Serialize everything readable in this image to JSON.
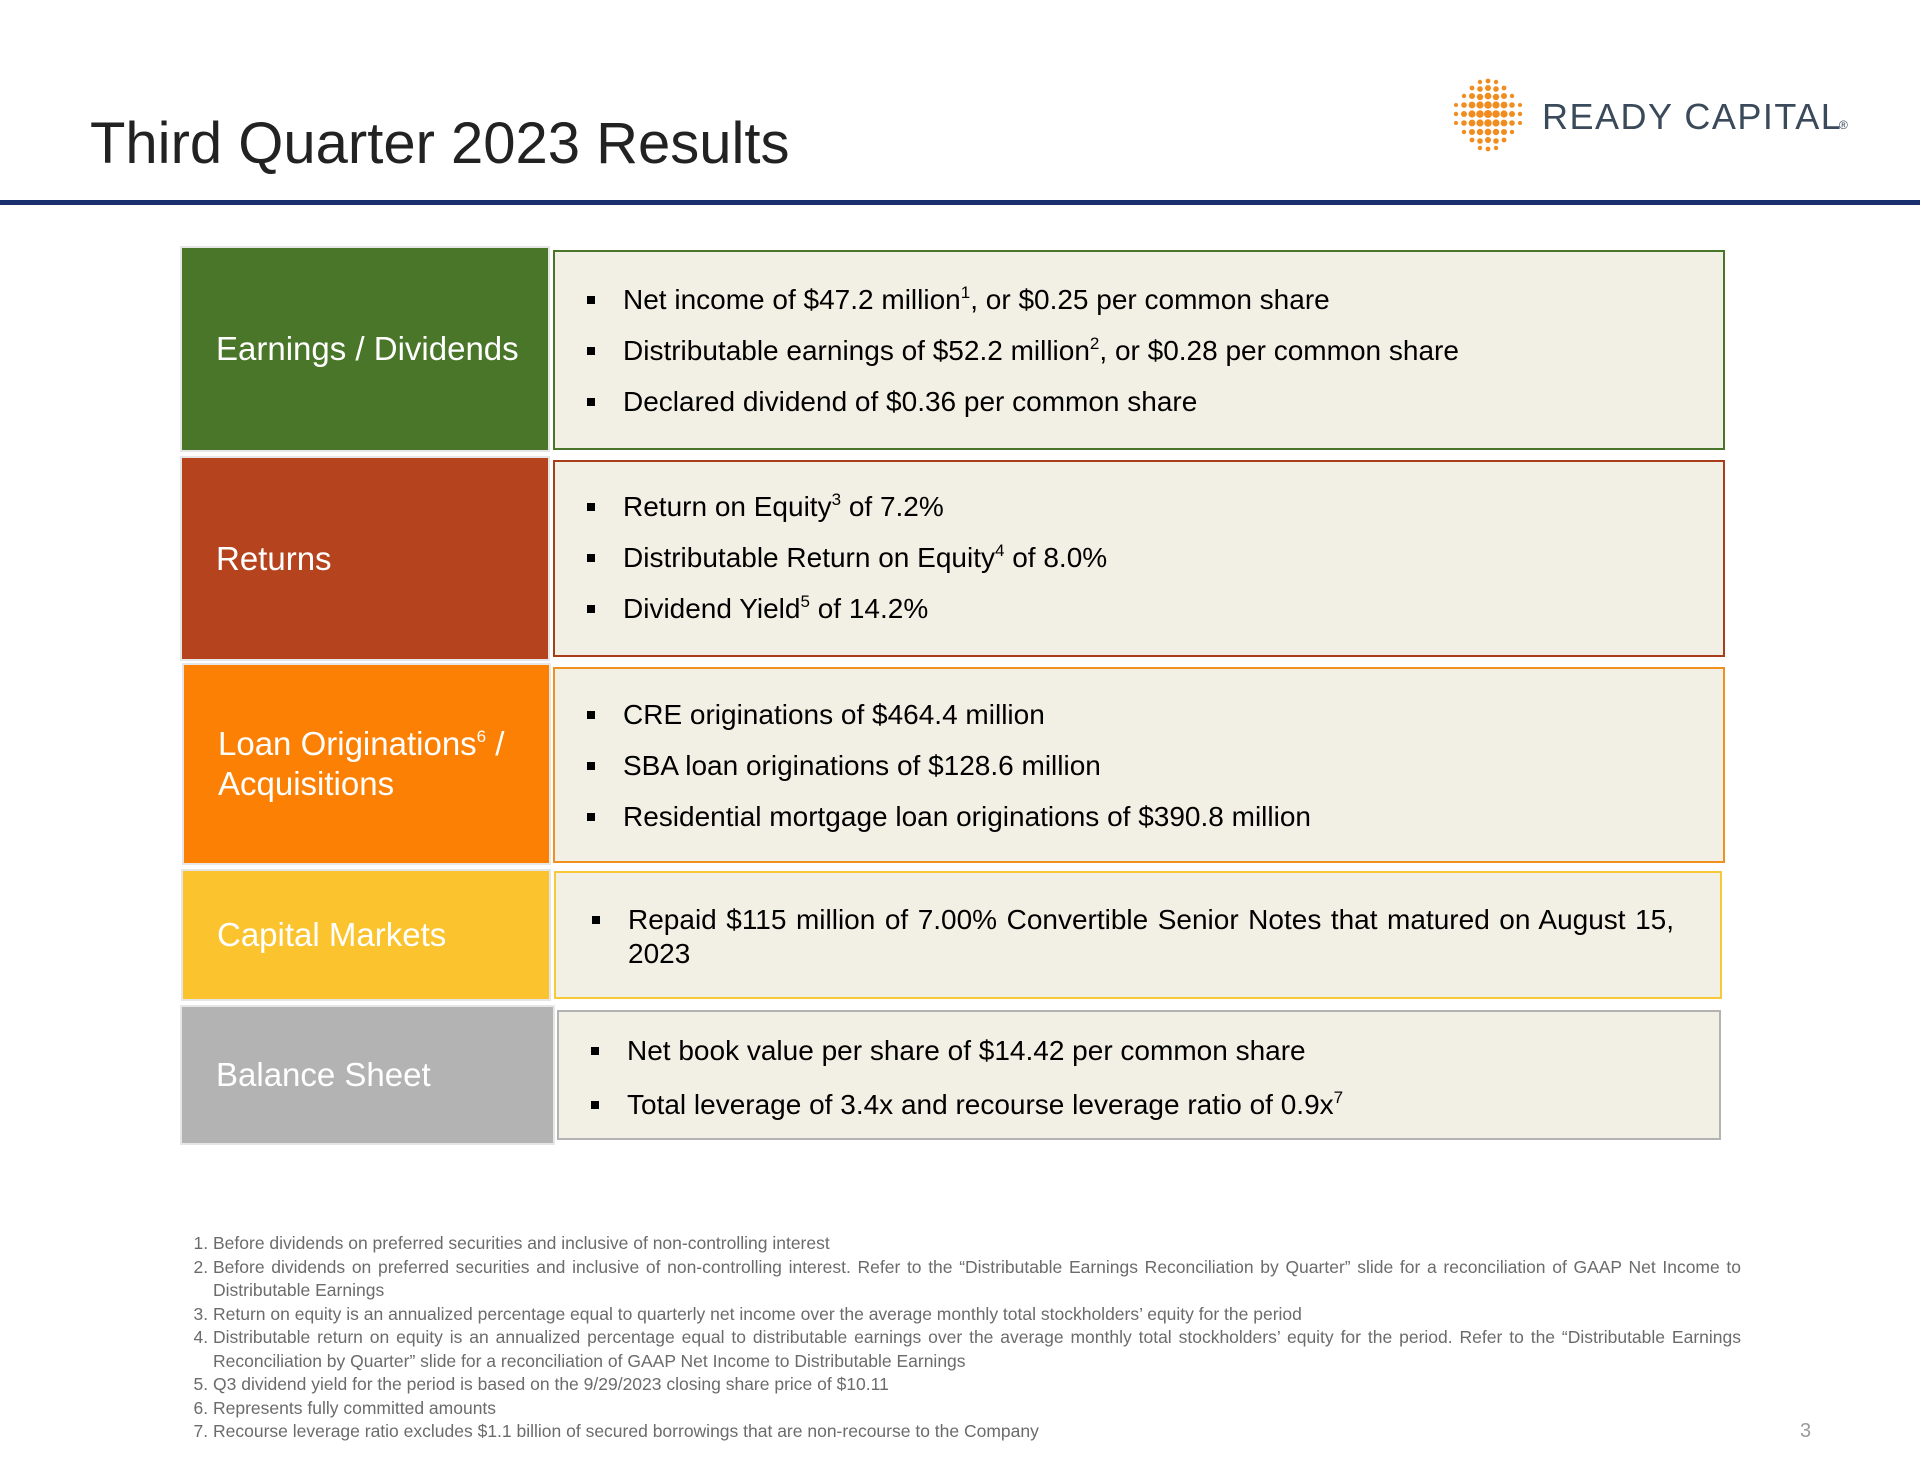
{
  "header": {
    "title": "Third Quarter 2023 Results"
  },
  "logo": {
    "text": "READY CAPITAL",
    "registered_mark": "®"
  },
  "colors": {
    "rule": "#1a2f6e",
    "earnings": "#4a762a",
    "returns": "#b5441e",
    "originations": "#fb8004",
    "capital_markets": "#fbc32d",
    "balance_sheet": "#b3b3b3",
    "content_background": "#f2f0e4",
    "logo_dots": "#f18c1f"
  },
  "sections": [
    {
      "label": "Earnings / Dividends",
      "bullets": [
        {
          "pre": "Net income of $47.2 million",
          "sup": "1",
          "post": ", or $0.25 per common share"
        },
        {
          "pre": "Distributable earnings of $52.2 million",
          "sup": "2",
          "post": ", or $0.28 per common share"
        },
        {
          "pre": "Declared dividend of $0.36 per common share",
          "sup": "",
          "post": ""
        }
      ]
    },
    {
      "label": "Returns",
      "bullets": [
        {
          "pre": "Return on Equity",
          "sup": "3",
          "post": " of 7.2%"
        },
        {
          "pre": "Distributable Return on Equity",
          "sup": "4",
          "post": " of 8.0%"
        },
        {
          "pre": "Dividend Yield",
          "sup": "5",
          "post": " of 14.2%"
        }
      ]
    },
    {
      "label_pre": "Loan Originations",
      "label_sup": "6",
      "label_post": " /",
      "label_line2": "Acquisitions",
      "bullets": [
        {
          "pre": "CRE originations of $464.4 million",
          "sup": "",
          "post": ""
        },
        {
          "pre": "SBA loan originations of $128.6 million",
          "sup": "",
          "post": ""
        },
        {
          "pre": "Residential mortgage loan originations of $390.8 million",
          "sup": "",
          "post": ""
        }
      ]
    },
    {
      "label": "Capital Markets",
      "bullets": [
        {
          "pre": "Repaid $115 million of 7.00% Convertible Senior Notes that matured on August 15, 2023",
          "sup": "",
          "post": ""
        }
      ]
    },
    {
      "label": "Balance Sheet",
      "bullets": [
        {
          "pre": "Net book value per share of $14.42 per common share",
          "sup": "",
          "post": ""
        },
        {
          "pre": "Total leverage of 3.4x and recourse leverage ratio of 0.9x",
          "sup": "7",
          "post": ""
        }
      ]
    }
  ],
  "footnotes": [
    "Before dividends on preferred securities and inclusive of non-controlling interest",
    "Before dividends on preferred securities and inclusive of non-controlling interest. Refer to the “Distributable Earnings Reconciliation by Quarter” slide for a reconciliation of GAAP Net Income to Distributable Earnings",
    "Return on equity is an annualized percentage equal to quarterly net income over the average monthly total stockholders’ equity for the period",
    "Distributable return on equity is an annualized percentage equal to distributable earnings over the average monthly total stockholders’ equity for the period. Refer to the “Distributable Earnings Reconciliation by Quarter” slide for a reconciliation of GAAP Net Income to Distributable Earnings",
    "Q3 dividend yield for the period is based on the 9/29/2023 closing share price of $10.11",
    "Represents fully committed amounts",
    "Recourse leverage ratio excludes $1.1 billion of secured borrowings that are non-recourse to the Company"
  ],
  "page_number": "3"
}
